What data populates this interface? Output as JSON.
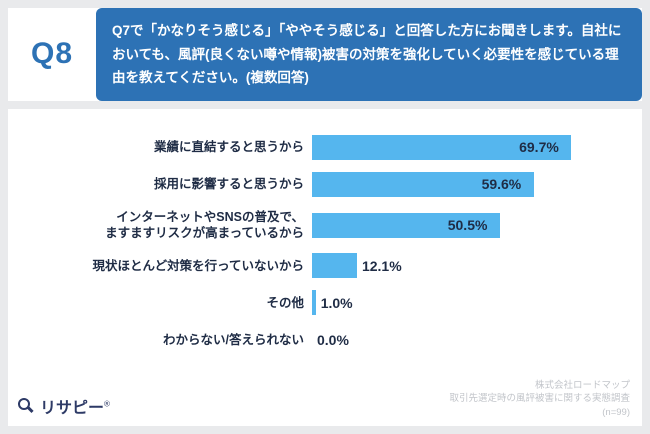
{
  "header": {
    "question_number": "Q8",
    "question_text": "Q7で「かなりそう感じる」「ややそう感じる」と回答した方にお聞きします。自社においても、風評(良くない噂や情報)被害の対策を強化していく必要性を感じている理由を教えてください。(複数回答)"
  },
  "chart_data": {
    "type": "bar",
    "orientation": "horizontal",
    "title": "",
    "categories": [
      "業績に直結すると思うから",
      "採用に影響すると思うから",
      "インターネットやSNSの普及で、\nますますリスクが高まっているから",
      "現状ほとんど対策を行っていないから",
      "その他",
      "わからない/答えられない"
    ],
    "values": [
      69.7,
      59.6,
      50.5,
      12.1,
      1.0,
      0.0
    ],
    "value_labels": [
      "69.7%",
      "59.6%",
      "50.5%",
      "12.1%",
      "1.0%",
      "0.0%"
    ],
    "xlim": [
      0,
      85
    ],
    "grid": false,
    "legend": false,
    "bar_color": "#55b6ee",
    "value_label_color": "#1f2c45"
  },
  "footer": {
    "logo_text": "リサピー",
    "logo_mark": "®",
    "credit_lines": [
      "株式会社ロードマップ",
      "取引先選定時の風評被害に関する実態調査",
      "(n=99)"
    ]
  },
  "colors": {
    "accent_blue": "#2d72b5",
    "bar_blue": "#55b6ee",
    "text_dark": "#1f2c45",
    "credit_gray": "#c2c5ca",
    "logo_navy": "#2d3a66",
    "page_bg": "#e9eaec"
  }
}
